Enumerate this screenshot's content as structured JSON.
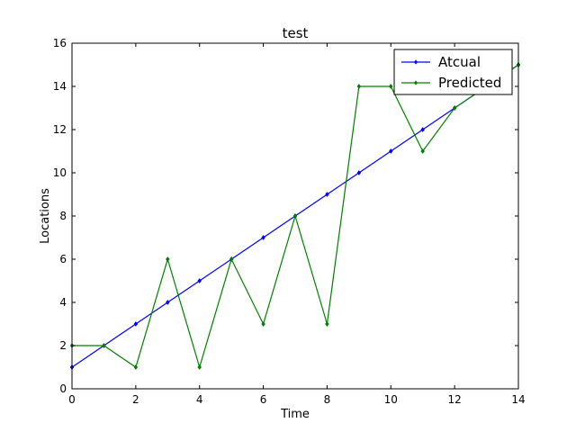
{
  "chart_data": {
    "type": "line",
    "title": "test",
    "xlabel": "Time",
    "ylabel": "Locations",
    "xlim": [
      0,
      14
    ],
    "ylim": [
      0,
      16
    ],
    "xticks": [
      0,
      2,
      4,
      6,
      8,
      10,
      12,
      14
    ],
    "yticks": [
      0,
      2,
      4,
      6,
      8,
      10,
      12,
      14,
      16
    ],
    "grid": false,
    "legend_position": "top-right",
    "series": [
      {
        "name": "Atcual",
        "color": "#0000ff",
        "x": [
          0,
          1,
          2,
          3,
          4,
          5,
          6,
          7,
          8,
          9,
          10,
          11,
          12,
          13,
          14
        ],
        "y": [
          1,
          2,
          3,
          4,
          5,
          6,
          7,
          8,
          9,
          10,
          11,
          12,
          13,
          14,
          15
        ]
      },
      {
        "name": "Predicted",
        "color": "#008000",
        "x": [
          0,
          1,
          2,
          3,
          4,
          5,
          6,
          7,
          8,
          9,
          10,
          11,
          12,
          13,
          14
        ],
        "y": [
          2,
          2,
          1,
          6,
          1,
          6,
          3,
          8,
          3,
          14,
          14,
          11,
          13,
          14,
          15
        ]
      }
    ]
  }
}
